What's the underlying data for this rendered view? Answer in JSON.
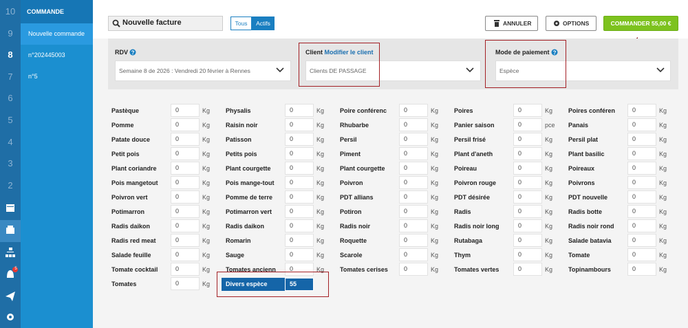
{
  "rail": {
    "numbers": [
      10,
      9,
      8,
      7,
      6,
      5,
      4,
      3,
      2
    ],
    "badge": 5
  },
  "sidebar": {
    "title": "COMMANDE RAPIDES",
    "items": [
      "Nouvelle commande",
      "n°202445003",
      "n°5"
    ]
  },
  "toolbar": {
    "search": "Nouvelle facture",
    "filters": [
      "Tous",
      "Actifs"
    ],
    "buttons": [
      "ANNULER",
      "OPTIONS",
      "COMMANDER 55,00 €"
    ]
  },
  "form": {
    "rdv": {
      "label": "RDV",
      "value": "Semaine 8 de 2026 : Vendredi 20 février à Rennes"
    },
    "client": {
      "label": "Client",
      "link": "Modifier le client",
      "value": "Clients DE PASSAGE"
    },
    "payment": {
      "label": "Mode de paiement",
      "value": "Espèce"
    }
  },
  "products": [
    [
      {
        "name": "Pastèque",
        "qty": 0,
        "unit": "Kg"
      },
      {
        "name": "Pomme",
        "qty": 0,
        "unit": "Kg"
      },
      {
        "name": "Patate douce",
        "qty": 0,
        "unit": "Kg"
      },
      {
        "name": "Petit pois",
        "qty": 0,
        "unit": "Kg"
      },
      {
        "name": "Plant coriandre",
        "qty": 0,
        "unit": "Kg"
      },
      {
        "name": "Pois mangetout",
        "qty": 0,
        "unit": "Kg"
      },
      {
        "name": "Poivron vert",
        "qty": 0,
        "unit": "Kg"
      },
      {
        "name": "Potimarron",
        "qty": 0,
        "unit": "Kg"
      },
      {
        "name": "Radis daikon",
        "qty": 0,
        "unit": "Kg"
      },
      {
        "name": "Radis red meat",
        "qty": 0,
        "unit": "Kg"
      },
      {
        "name": "Salade feuille",
        "qty": 0,
        "unit": "Kg"
      },
      {
        "name": "Tomate cocktail",
        "qty": 0,
        "unit": "Kg"
      },
      {
        "name": "Tomates",
        "qty": 0,
        "unit": "Kg"
      }
    ],
    [
      {
        "name": "Physalis",
        "qty": 0,
        "unit": "Kg"
      },
      {
        "name": "Raisin noir",
        "qty": 0,
        "unit": "Kg"
      },
      {
        "name": "Patisson",
        "qty": 0,
        "unit": "Kg"
      },
      {
        "name": "Petits pois",
        "qty": 0,
        "unit": "Kg"
      },
      {
        "name": "Plant courgette",
        "qty": 0,
        "unit": "Kg"
      },
      {
        "name": "Pois mange-tout",
        "qty": 0,
        "unit": "Kg"
      },
      {
        "name": "Pomme de terre",
        "qty": 0,
        "unit": "Kg"
      },
      {
        "name": "Potimarron vert",
        "qty": 0,
        "unit": "Kg"
      },
      {
        "name": "Radis daikon",
        "qty": 0,
        "unit": "Kg"
      },
      {
        "name": "Romarin",
        "qty": 0,
        "unit": "Kg"
      },
      {
        "name": "Sauge",
        "qty": 0,
        "unit": "Kg"
      },
      {
        "name": "Tomates ancienn",
        "qty": 0,
        "unit": "Kg"
      }
    ],
    [
      {
        "name": "Poire conférenc",
        "qty": 0,
        "unit": "Kg"
      },
      {
        "name": "Rhubarbe",
        "qty": 0,
        "unit": "Kg"
      },
      {
        "name": "Persil",
        "qty": 0,
        "unit": "Kg"
      },
      {
        "name": "Piment",
        "qty": 0,
        "unit": "Kg"
      },
      {
        "name": "Plant courgette",
        "qty": 0,
        "unit": "Kg"
      },
      {
        "name": "Poivron",
        "qty": 0,
        "unit": "Kg"
      },
      {
        "name": "PDT allians",
        "qty": 0,
        "unit": "Kg"
      },
      {
        "name": "Potiron",
        "qty": 0,
        "unit": "Kg"
      },
      {
        "name": "Radis noir",
        "qty": 0,
        "unit": "Kg"
      },
      {
        "name": "Roquette",
        "qty": 0,
        "unit": "Kg"
      },
      {
        "name": "Scarole",
        "qty": 0,
        "unit": "Kg"
      },
      {
        "name": "Tomates cerises",
        "qty": 0,
        "unit": "Kg"
      }
    ],
    [
      {
        "name": "Poires",
        "qty": 0,
        "unit": "Kg"
      },
      {
        "name": "Panier saison",
        "qty": 0,
        "unit": "pce"
      },
      {
        "name": "Persil frisé",
        "qty": 0,
        "unit": "Kg"
      },
      {
        "name": "Plant d'aneth",
        "qty": 0,
        "unit": "Kg"
      },
      {
        "name": "Poireau",
        "qty": 0,
        "unit": "Kg"
      },
      {
        "name": "Poivron rouge",
        "qty": 0,
        "unit": "Kg"
      },
      {
        "name": "PDT désirée",
        "qty": 0,
        "unit": "Kg"
      },
      {
        "name": "Radis",
        "qty": 0,
        "unit": "Kg"
      },
      {
        "name": "Radis noir long",
        "qty": 0,
        "unit": "Kg"
      },
      {
        "name": "Rutabaga",
        "qty": 0,
        "unit": "Kg"
      },
      {
        "name": "Thym",
        "qty": 0,
        "unit": "Kg"
      },
      {
        "name": "Tomates vertes",
        "qty": 0,
        "unit": "Kg"
      }
    ],
    [
      {
        "name": "Poires conféren",
        "qty": 0,
        "unit": "Kg"
      },
      {
        "name": "Panais",
        "qty": 0,
        "unit": "Kg"
      },
      {
        "name": "Persil plat",
        "qty": 0,
        "unit": "Kg"
      },
      {
        "name": "Plant basilic",
        "qty": 0,
        "unit": "Kg"
      },
      {
        "name": "Poireaux",
        "qty": 0,
        "unit": "Kg"
      },
      {
        "name": "Poivrons",
        "qty": 0,
        "unit": "Kg"
      },
      {
        "name": "PDT nouvelle",
        "qty": 0,
        "unit": "Kg"
      },
      {
        "name": "Radis botte",
        "qty": 0,
        "unit": "Kg"
      },
      {
        "name": "Radis noir rond",
        "qty": 0,
        "unit": "Kg"
      },
      {
        "name": "Salade batavia",
        "qty": 0,
        "unit": "Kg"
      },
      {
        "name": "Tomate",
        "qty": 0,
        "unit": "Kg"
      },
      {
        "name": "Topinambours",
        "qty": 0,
        "unit": "Kg"
      }
    ]
  ],
  "divers": {
    "name": "Divers espèce",
    "qty": 55
  }
}
